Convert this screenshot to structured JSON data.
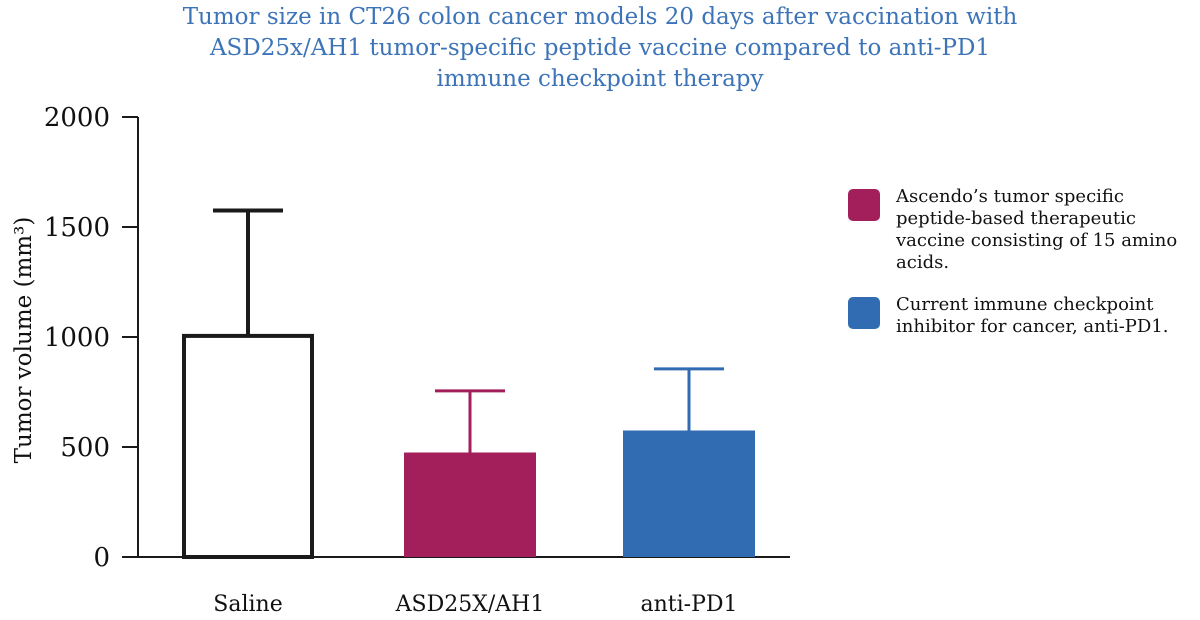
{
  "chart_data": {
    "type": "bar",
    "title_lines": [
      "Tumor size in CT26 colon cancer models 20 days after vaccination with",
      "ASD25x/AH1 tumor-specific peptide vaccine compared to anti-PD1",
      "immune checkpoint therapy"
    ],
    "ylabel": "Tumor volume (mm³)",
    "xlabel": "",
    "ylim": [
      0,
      2000
    ],
    "yticks": [
      "0",
      "500",
      "1000",
      "1500",
      "2000"
    ],
    "categories": [
      "Saline",
      "ASD25X/AH1",
      "anti-PD1"
    ],
    "values": [
      1005,
      475,
      575
    ],
    "error_upper": [
      1575,
      755,
      855
    ],
    "colors": [
      "#ffffff",
      "#a31f5b",
      "#316bb1"
    ],
    "outline": [
      "#1a1a1a",
      "",
      ""
    ],
    "legend": [
      {
        "color": "#a31f5b",
        "label": "Ascendo’s tumor specific peptide-based therapeutic vaccine consisting of 15 amino acids."
      },
      {
        "color": "#316bb1",
        "label": "Current immune checkpoint inhibitor for cancer, anti-PD1."
      }
    ],
    "legend_position": "right",
    "grid": false
  }
}
